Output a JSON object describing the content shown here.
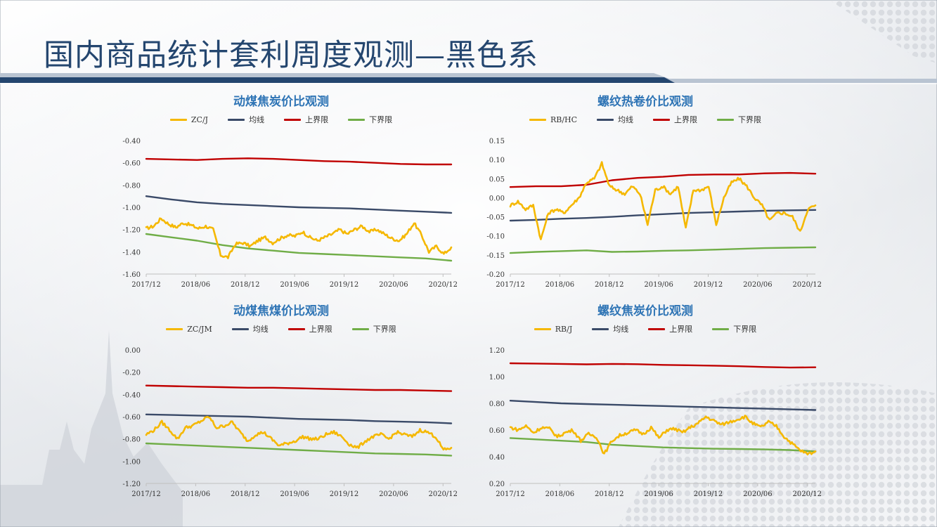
{
  "page": {
    "title": "国内商品统计套利周度观测—黑色系"
  },
  "colors": {
    "title_text": "#24466f",
    "title_bar_dark": "#24466f",
    "title_bar_light": "#b9c4d2",
    "chart_title": "#2e74b5"
  },
  "chart_data": [
    {
      "type": "line",
      "title": "动煤焦炭价比观测",
      "x_start": "2017/12",
      "x_end": "2021/01",
      "x_ticks": [
        "2017/12",
        "2018/06",
        "2018/12",
        "2019/06",
        "2019/12",
        "2020/06",
        "2020/12"
      ],
      "y_ticks": [
        "-0.40",
        "-0.60",
        "-0.80",
        "-1.00",
        "-1.20",
        "-1.40",
        "-1.60"
      ],
      "ylim": [
        -1.6,
        -0.4
      ],
      "grid": false,
      "legend": "top",
      "series": [
        {
          "name": "ZC/J",
          "color": "#f5b800",
          "noisy": true,
          "values": [
            -1.19,
            -1.17,
            -1.1,
            -1.15,
            -1.18,
            -1.14,
            -1.16,
            -1.19,
            -1.17,
            -1.2,
            -1.43,
            -1.45,
            -1.33,
            -1.32,
            -1.35,
            -1.3,
            -1.27,
            -1.32,
            -1.28,
            -1.25,
            -1.26,
            -1.22,
            -1.27,
            -1.3,
            -1.27,
            -1.24,
            -1.2,
            -1.24,
            -1.2,
            -1.17,
            -1.22,
            -1.2,
            -1.24,
            -1.28,
            -1.3,
            -1.24,
            -1.14,
            -1.25,
            -1.4,
            -1.35,
            -1.42,
            -1.36
          ]
        },
        {
          "name": "均线",
          "color": "#3a4a68",
          "values": [
            -0.9,
            -0.93,
            -0.955,
            -0.97,
            -0.98,
            -0.99,
            -1.0,
            -1.005,
            -1.01,
            -1.02,
            -1.03,
            -1.04,
            -1.05
          ]
        },
        {
          "name": "上界限",
          "color": "#c00000",
          "values": [
            -0.565,
            -0.57,
            -0.575,
            -0.565,
            -0.56,
            -0.565,
            -0.575,
            -0.585,
            -0.59,
            -0.6,
            -0.61,
            -0.615,
            -0.615
          ]
        },
        {
          "name": "下界限",
          "color": "#70ad47",
          "values": [
            -1.24,
            -1.27,
            -1.3,
            -1.34,
            -1.37,
            -1.39,
            -1.41,
            -1.42,
            -1.43,
            -1.44,
            -1.45,
            -1.46,
            -1.48
          ]
        }
      ]
    },
    {
      "type": "line",
      "title": "螺纹热卷价比观测",
      "x_start": "2017/12",
      "x_end": "2021/01",
      "x_ticks": [
        "2017/12",
        "2018/06",
        "2018/12",
        "2019/06",
        "2019/12",
        "2020/06",
        "2020/12"
      ],
      "y_ticks": [
        "0.15",
        "0.10",
        "0.05",
        "0.00",
        "-0.05",
        "-0.10",
        "-0.15",
        "-0.20"
      ],
      "ylim": [
        -0.2,
        0.15
      ],
      "grid": false,
      "legend": "top",
      "series": [
        {
          "name": "RB/HC",
          "color": "#f5b800",
          "noisy": true,
          "values": [
            -0.02,
            -0.01,
            -0.03,
            -0.02,
            -0.11,
            -0.04,
            -0.03,
            -0.04,
            -0.02,
            0.0,
            0.04,
            0.05,
            0.09,
            0.03,
            0.02,
            0.01,
            0.03,
            0.01,
            -0.07,
            0.02,
            0.03,
            0.01,
            0.03,
            -0.08,
            0.02,
            0.02,
            0.03,
            -0.07,
            0.0,
            0.04,
            0.05,
            0.03,
            0.0,
            -0.02,
            -0.06,
            -0.04,
            -0.04,
            -0.05,
            -0.09,
            -0.03,
            -0.02
          ]
        },
        {
          "name": "均线",
          "color": "#3a4a68",
          "values": [
            -0.06,
            -0.058,
            -0.055,
            -0.053,
            -0.05,
            -0.046,
            -0.043,
            -0.04,
            -0.038,
            -0.036,
            -0.034,
            -0.033,
            -0.032
          ]
        },
        {
          "name": "上界限",
          "color": "#c00000",
          "values": [
            0.028,
            0.03,
            0.03,
            0.034,
            0.046,
            0.052,
            0.055,
            0.06,
            0.061,
            0.061,
            0.064,
            0.065,
            0.063
          ]
        },
        {
          "name": "下界限",
          "color": "#70ad47",
          "values": [
            -0.145,
            -0.142,
            -0.14,
            -0.138,
            -0.142,
            -0.141,
            -0.139,
            -0.138,
            -0.136,
            -0.134,
            -0.132,
            -0.131,
            -0.13
          ]
        }
      ]
    },
    {
      "type": "line",
      "title": "动煤焦煤价比观测",
      "x_start": "2017/12",
      "x_end": "2021/01",
      "x_ticks": [
        "2017/12",
        "2018/06",
        "2018/12",
        "2019/06",
        "2019/12",
        "2020/06",
        "2020/12"
      ],
      "y_ticks": [
        "0.00",
        "-0.20",
        "-0.40",
        "-0.60",
        "-0.80",
        "-1.00",
        "-1.20"
      ],
      "ylim": [
        -1.2,
        0.0
      ],
      "grid": false,
      "legend": "top",
      "series": [
        {
          "name": "ZC/JM",
          "color": "#f5b800",
          "noisy": true,
          "values": [
            -0.76,
            -0.72,
            -0.65,
            -0.72,
            -0.8,
            -0.7,
            -0.68,
            -0.64,
            -0.6,
            -0.7,
            -0.68,
            -0.65,
            -0.74,
            -0.82,
            -0.76,
            -0.74,
            -0.8,
            -0.86,
            -0.84,
            -0.82,
            -0.78,
            -0.8,
            -0.8,
            -0.76,
            -0.74,
            -0.78,
            -0.85,
            -0.88,
            -0.82,
            -0.78,
            -0.76,
            -0.8,
            -0.74,
            -0.76,
            -0.78,
            -0.72,
            -0.74,
            -0.78,
            -0.9,
            -0.88
          ]
        },
        {
          "name": "均线",
          "color": "#3a4a68",
          "values": [
            -0.58,
            -0.585,
            -0.59,
            -0.595,
            -0.6,
            -0.61,
            -0.62,
            -0.625,
            -0.63,
            -0.64,
            -0.645,
            -0.65,
            -0.66
          ]
        },
        {
          "name": "上界限",
          "color": "#c00000",
          "values": [
            -0.32,
            -0.325,
            -0.33,
            -0.335,
            -0.34,
            -0.34,
            -0.345,
            -0.35,
            -0.355,
            -0.36,
            -0.36,
            -0.365,
            -0.37
          ]
        },
        {
          "name": "下界限",
          "color": "#70ad47",
          "values": [
            -0.84,
            -0.85,
            -0.86,
            -0.87,
            -0.88,
            -0.89,
            -0.9,
            -0.91,
            -0.92,
            -0.93,
            -0.935,
            -0.94,
            -0.95
          ]
        }
      ]
    },
    {
      "type": "line",
      "title": "螺纹焦炭价比观测",
      "x_start": "2017/12",
      "x_end": "2021/01",
      "x_ticks": [
        "2017/12",
        "2018/06",
        "2018/12",
        "2019/06",
        "2019/12",
        "2020/06",
        "2020/12"
      ],
      "y_ticks": [
        "1.20",
        "1.00",
        "0.80",
        "0.60",
        "0.40",
        "0.20"
      ],
      "ylim": [
        0.2,
        1.2
      ],
      "grid": false,
      "legend": "top",
      "series": [
        {
          "name": "RB/J",
          "color": "#f5b800",
          "noisy": true,
          "values": [
            0.62,
            0.6,
            0.63,
            0.58,
            0.62,
            0.61,
            0.55,
            0.58,
            0.6,
            0.52,
            0.57,
            0.55,
            0.42,
            0.52,
            0.56,
            0.58,
            0.6,
            0.57,
            0.62,
            0.54,
            0.6,
            0.61,
            0.58,
            0.62,
            0.65,
            0.7,
            0.67,
            0.64,
            0.66,
            0.68,
            0.7,
            0.65,
            0.62,
            0.66,
            0.63,
            0.55,
            0.5,
            0.45,
            0.42,
            0.44
          ]
        },
        {
          "name": "均线",
          "color": "#3a4a68",
          "values": [
            0.82,
            0.81,
            0.8,
            0.795,
            0.79,
            0.785,
            0.78,
            0.775,
            0.77,
            0.765,
            0.76,
            0.755,
            0.75
          ]
        },
        {
          "name": "上界限",
          "color": "#c00000",
          "values": [
            1.1,
            1.098,
            1.095,
            1.092,
            1.095,
            1.093,
            1.088,
            1.085,
            1.082,
            1.078,
            1.072,
            1.068,
            1.07
          ]
        },
        {
          "name": "下界限",
          "color": "#70ad47",
          "values": [
            0.54,
            0.53,
            0.52,
            0.51,
            0.49,
            0.48,
            0.47,
            0.465,
            0.46,
            0.458,
            0.455,
            0.45,
            0.44
          ]
        }
      ]
    }
  ]
}
